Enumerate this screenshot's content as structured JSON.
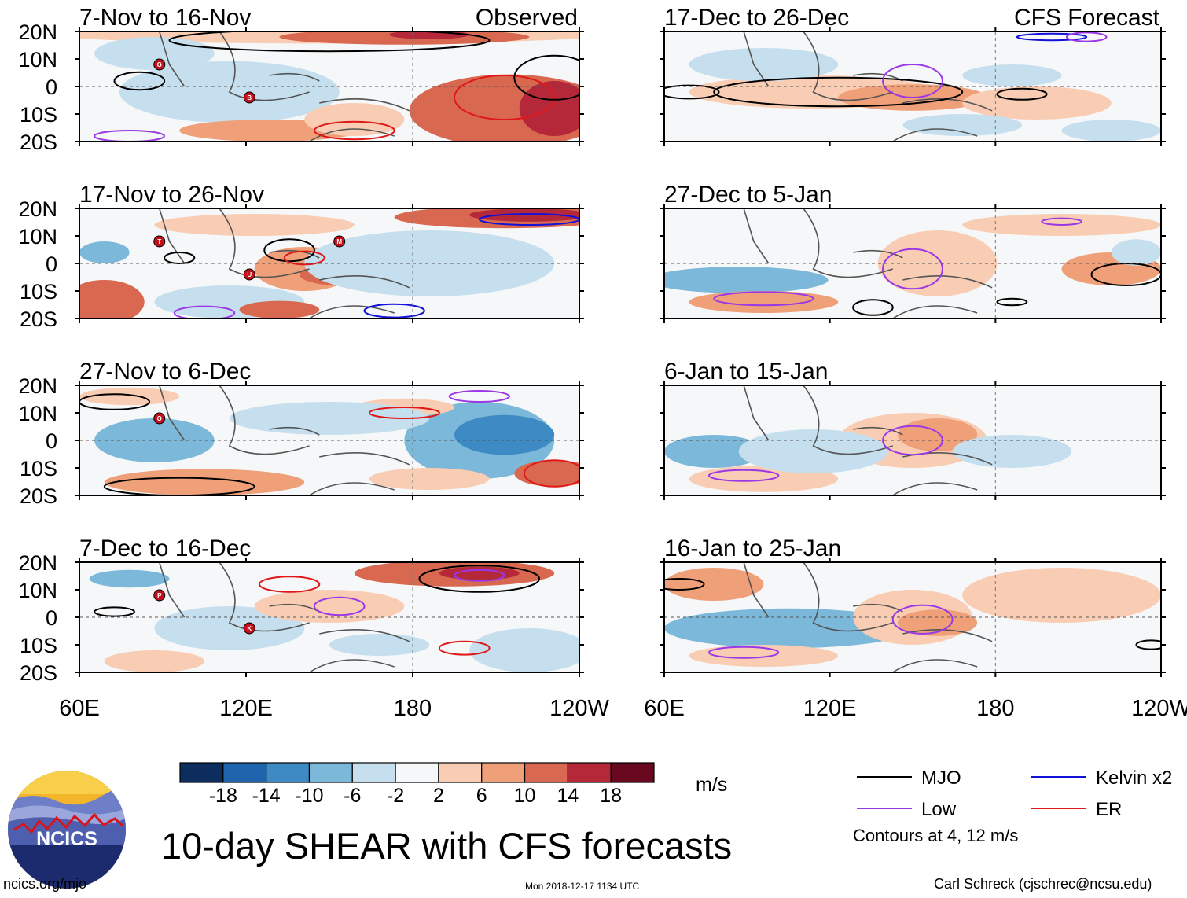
{
  "chart_data": {
    "type": "heatmap",
    "title": "10-day SHEAR with CFS forecasts",
    "units": "m/s",
    "variable": "10-day vertical wind shear anomaly (filled) with filtered wave contours",
    "x_ticks": [
      "60E",
      "120E",
      "180",
      "120W"
    ],
    "x_range_deg_east": [
      60,
      240
    ],
    "y_ticks": [
      "20N",
      "10N",
      "0",
      "10S",
      "20S"
    ],
    "y_range_deg": [
      -20,
      20
    ],
    "columns": [
      {
        "label": "Observed",
        "panels": [
          "7-Nov to 16-Nov",
          "17-Nov to 26-Nov",
          "27-Nov to 6-Dec",
          "7-Dec to 16-Dec"
        ]
      },
      {
        "label": "CFS Forecast",
        "panels": [
          "17-Dec to 26-Dec",
          "27-Dec to 5-Jan",
          "6-Jan to 15-Jan",
          "16-Jan to 25-Jan"
        ]
      }
    ],
    "colorbar": {
      "ticks": [
        "-18",
        "-14",
        "-10",
        "-6",
        "-2",
        "2",
        "6",
        "10",
        "14",
        "18"
      ],
      "colors": [
        "#0c2d5e",
        "#1f65ad",
        "#3d8ac4",
        "#7cb8d9",
        "#c6dfee",
        "#f5f7f8",
        "#f9cdb4",
        "#efa078",
        "#d86850",
        "#b4283a",
        "#68091f"
      ]
    },
    "legend": [
      {
        "name": "MJO",
        "color": "#000000"
      },
      {
        "name": "Kelvin x2",
        "color": "#1212d8"
      },
      {
        "name": "Low",
        "color": "#9a38e6"
      },
      {
        "name": "ER",
        "color": "#e01818"
      }
    ],
    "contour_note": "Contours at 4, 12 m/s",
    "storms": [
      {
        "panel": "7-Nov to 16-Nov",
        "markers": [
          "G",
          "B"
        ]
      },
      {
        "panel": "17-Nov to 26-Nov",
        "markers": [
          "T",
          "U",
          "M"
        ]
      },
      {
        "panel": "27-Nov to 6-Dec",
        "markers": [
          "O"
        ]
      },
      {
        "panel": "7-Dec to 16-Dec",
        "markers": [
          "P",
          "K"
        ]
      }
    ]
  },
  "branding": {
    "logo_text": "NCICS"
  },
  "footer": {
    "left": "ncics.org/mjo",
    "center": "Mon 2018-12-17 1134 UTC",
    "right": "Carl Schreck (cjschrec@ncsu.edu)"
  }
}
